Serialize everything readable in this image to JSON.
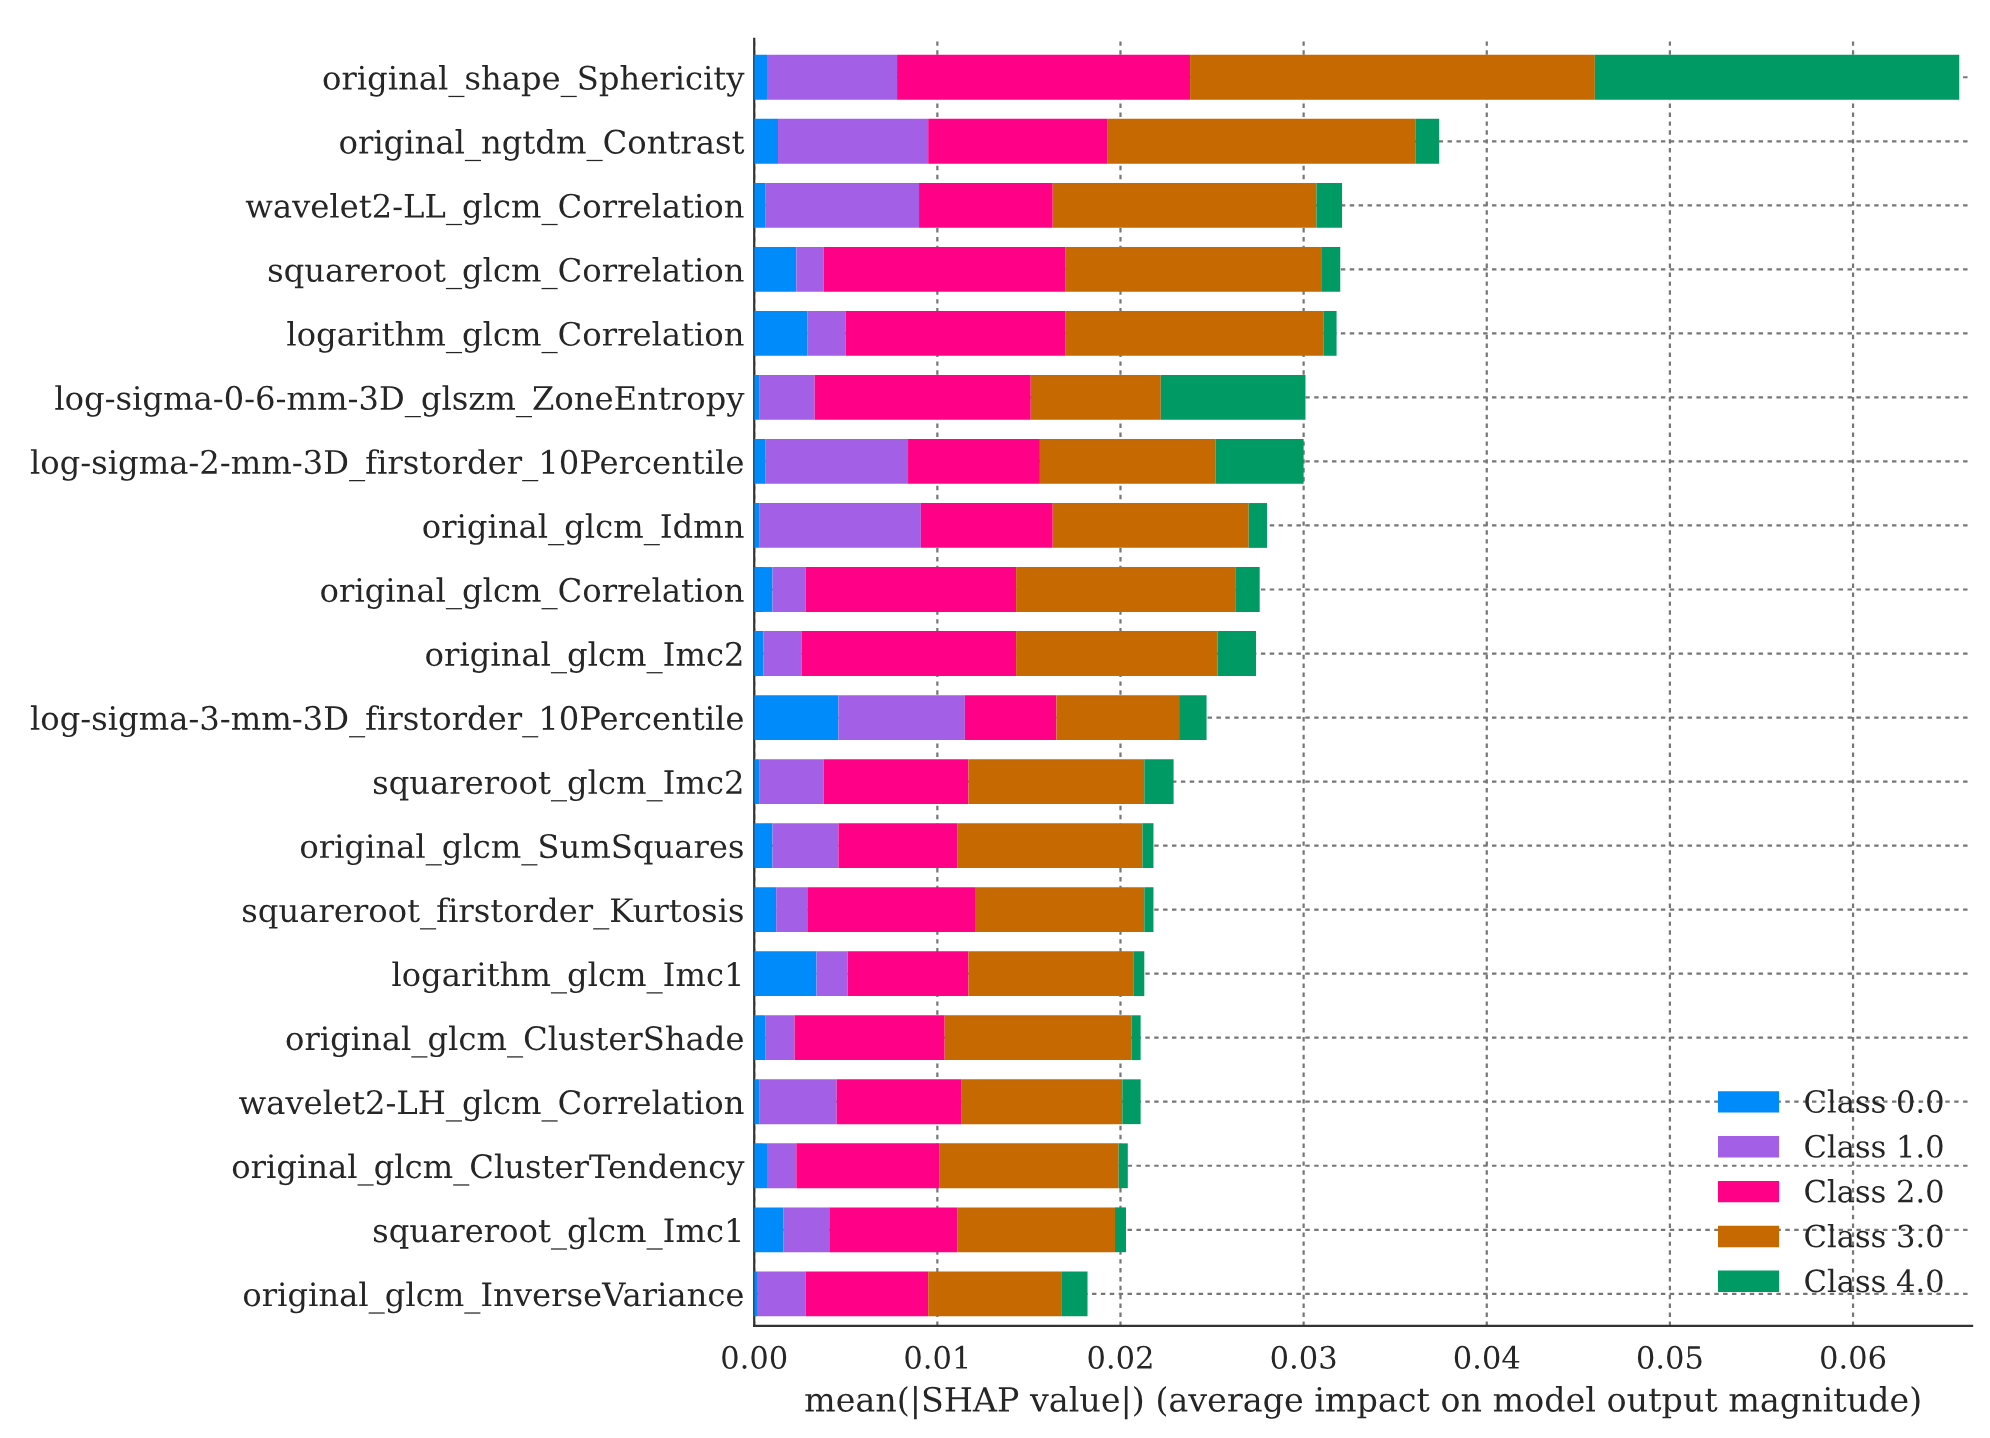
{
  "chart_data": {
    "type": "bar",
    "orientation": "horizontal",
    "stacked": true,
    "xlabel": "mean(|SHAP value|) (average impact on model output magnitude)",
    "categories": [
      "original_shape_Sphericity",
      "original_ngtdm_Contrast",
      "wavelet2-LL_glcm_Correlation",
      "squareroot_glcm_Correlation",
      "logarithm_glcm_Correlation",
      "log-sigma-0-6-mm-3D_glszm_ZoneEntropy",
      "log-sigma-2-mm-3D_firstorder_10Percentile",
      "original_glcm_Idmn",
      "original_glcm_Correlation",
      "original_glcm_Imc2",
      "log-sigma-3-mm-3D_firstorder_10Percentile",
      "squareroot_glcm_Imc2",
      "original_glcm_SumSquares",
      "squareroot_firstorder_Kurtosis",
      "logarithm_glcm_Imc1",
      "original_glcm_ClusterShade",
      "wavelet2-LH_glcm_Correlation",
      "original_glcm_ClusterTendency",
      "squareroot_glcm_Imc1",
      "original_glcm_InverseVariance"
    ],
    "series": [
      {
        "name": "Class 0.0",
        "color": "#008bfb",
        "values": [
          0.0007,
          0.0013,
          0.0006,
          0.0023,
          0.0029,
          0.0003,
          0.0006,
          0.0003,
          0.001,
          0.0005,
          0.0046,
          0.0003,
          0.001,
          0.0012,
          0.0034,
          0.0006,
          0.0003,
          0.0007,
          0.0016,
          0.0002
        ]
      },
      {
        "name": "Class 1.0",
        "color": "#a35fe6",
        "values": [
          0.0071,
          0.0082,
          0.0084,
          0.0015,
          0.0021,
          0.003,
          0.0078,
          0.0088,
          0.0018,
          0.0021,
          0.0069,
          0.0035,
          0.0036,
          0.0017,
          0.0017,
          0.0016,
          0.0042,
          0.0016,
          0.0025,
          0.0026
        ]
      },
      {
        "name": "Class 2.0",
        "color": "#ff0087",
        "values": [
          0.016,
          0.0098,
          0.0073,
          0.0132,
          0.012,
          0.0118,
          0.0072,
          0.0072,
          0.0115,
          0.0117,
          0.005,
          0.0079,
          0.0065,
          0.0092,
          0.0066,
          0.0082,
          0.0068,
          0.0078,
          0.007,
          0.0067
        ]
      },
      {
        "name": "Class 3.0",
        "color": "#c56900",
        "values": [
          0.0221,
          0.0168,
          0.0144,
          0.014,
          0.0141,
          0.0071,
          0.0096,
          0.0107,
          0.012,
          0.011,
          0.0067,
          0.0096,
          0.0101,
          0.0092,
          0.009,
          0.0102,
          0.0088,
          0.0098,
          0.0086,
          0.0073
        ]
      },
      {
        "name": "Class 4.0",
        "color": "#009b64",
        "values": [
          0.0199,
          0.0013,
          0.0014,
          0.001,
          0.0007,
          0.0079,
          0.0048,
          0.001,
          0.0013,
          0.0021,
          0.0015,
          0.0016,
          0.0006,
          0.0005,
          0.0006,
          0.0005,
          0.001,
          0.0005,
          0.0006,
          0.0014
        ]
      }
    ],
    "xlim": [
      0,
      0.0665
    ],
    "xticks": [
      {
        "value": 0,
        "label": "0.00"
      },
      {
        "value": 0.01,
        "label": "0.01"
      },
      {
        "value": 0.02,
        "label": "0.02"
      },
      {
        "value": 0.03,
        "label": "0.03"
      },
      {
        "value": 0.04,
        "label": "0.04"
      },
      {
        "value": 0.05,
        "label": "0.05"
      },
      {
        "value": 0.06,
        "label": "0.06"
      }
    ],
    "grid": true,
    "legend": "bottom right"
  }
}
